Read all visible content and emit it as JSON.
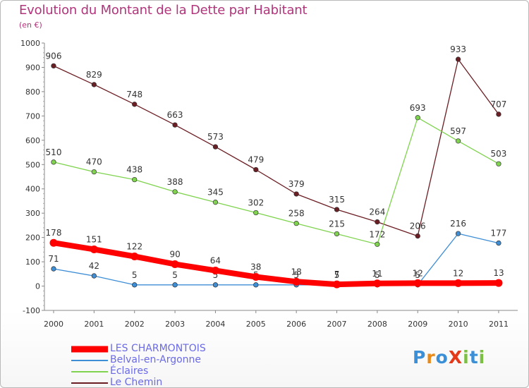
{
  "title": "Evolution du Montant de la Dette par Habitant",
  "subtitle": "(en €)",
  "logo": "ProXiti",
  "chart_data": {
    "type": "line",
    "title": "Evolution du Montant de la Dette par Habitant",
    "subtitle": "(en €)",
    "xlabel": "",
    "ylabel": "",
    "x": [
      "2000",
      "2001",
      "2002",
      "2003",
      "2004",
      "2005",
      "2006",
      "2007",
      "2008",
      "2009",
      "2010",
      "2011"
    ],
    "ylim": [
      -100,
      1000
    ],
    "yticks": [
      -100,
      0,
      100,
      200,
      300,
      400,
      500,
      600,
      700,
      800,
      900,
      1000
    ],
    "grid": false,
    "legend": "bottom",
    "series": [
      {
        "name": "Le Chemin",
        "color": "#6b1e24",
        "values": [
          906,
          829,
          748,
          663,
          573,
          479,
          379,
          315,
          264,
          206,
          933,
          707
        ],
        "labels": [
          "906",
          "829",
          "748",
          "663",
          "573",
          "479",
          "379",
          "315",
          "264",
          "206",
          "933",
          "707"
        ]
      },
      {
        "name": "Éclaires",
        "color": "#7fd34e",
        "values": [
          510,
          470,
          438,
          388,
          345,
          302,
          258,
          215,
          172,
          693,
          597,
          503
        ],
        "labels": [
          "510",
          "470",
          "438",
          "388",
          "345",
          "302",
          "258",
          "215",
          "172",
          "693",
          "597",
          "503"
        ]
      },
      {
        "name": "Belval-en-Argonne",
        "color": "#3e8ed6",
        "values": [
          71,
          42,
          5,
          5,
          5,
          5,
          5,
          5,
          5,
          5,
          216,
          177
        ],
        "labels": [
          "71",
          "42",
          "5",
          "5",
          "5",
          "5",
          "5",
          "5",
          "5",
          "5",
          "216",
          "177"
        ]
      },
      {
        "name": "LES CHARMONTOIS",
        "color": "#ff0000",
        "values": [
          178,
          151,
          122,
          90,
          64,
          38,
          18,
          7,
          11,
          12,
          12,
          13
        ],
        "labels": [
          "178",
          "151",
          "122",
          "90",
          "64",
          "38",
          "18",
          "7",
          "11",
          "12",
          "12",
          "13"
        ]
      }
    ],
    "legend_order": [
      "LES CHARMONTOIS",
      "Belval-en-Argonne",
      "Éclaires",
      "Le Chemin"
    ]
  }
}
